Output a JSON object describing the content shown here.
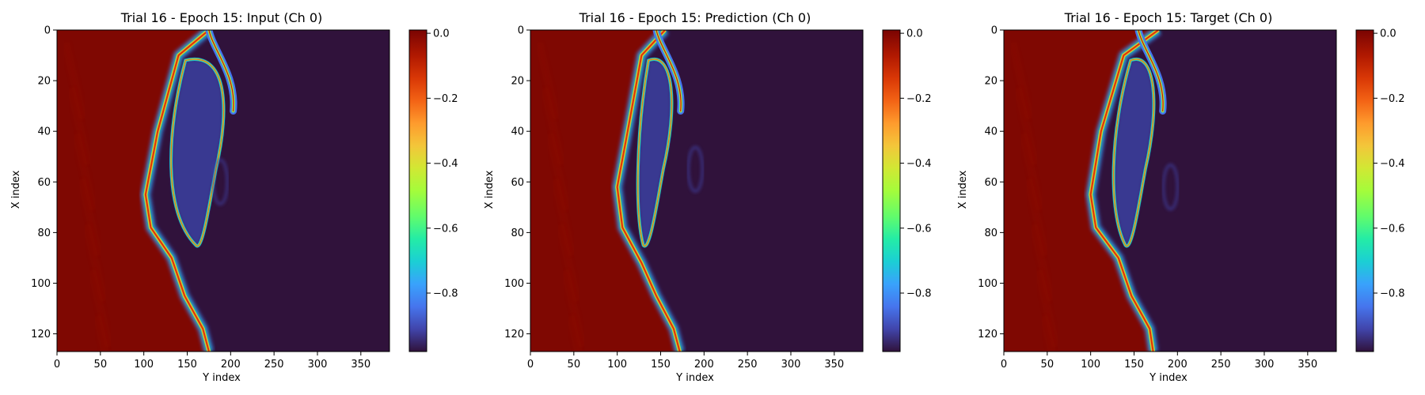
{
  "chart_data": [
    {
      "type": "heatmap",
      "title": "Trial 16 - Epoch 15: Input (Ch 0)",
      "xlabel": "Y index",
      "ylabel": "X index",
      "xlim": [
        0,
        383
      ],
      "ylim": [
        127,
        0
      ],
      "x_ticks": [
        0,
        50,
        100,
        150,
        200,
        250,
        300,
        350
      ],
      "y_ticks": [
        0,
        20,
        40,
        60,
        80,
        100,
        120
      ],
      "colormap": "turbo",
      "colorbar": {
        "range": [
          -0.98,
          0.01
        ],
        "ticks": [
          0.0,
          -0.2,
          -0.4,
          -0.6,
          -0.8
        ]
      },
      "field": {
        "front_y_at_x": [
          [
            0,
            175
          ],
          [
            10,
            140
          ],
          [
            40,
            116
          ],
          [
            65,
            102
          ],
          [
            78,
            108
          ],
          [
            90,
            132
          ],
          [
            105,
            147
          ],
          [
            118,
            168
          ],
          [
            127,
            175
          ]
        ],
        "plume_tip_y": 205,
        "eddy_center": [
          60,
          188
        ],
        "background_value": -0.98,
        "fluid_value": 0.0
      }
    },
    {
      "type": "heatmap",
      "title": "Trial 16 - Epoch 15: Prediction (Ch 0)",
      "xlabel": "Y index",
      "ylabel": "X index",
      "xlim": [
        0,
        383
      ],
      "ylim": [
        127,
        0
      ],
      "x_ticks": [
        0,
        50,
        100,
        150,
        200,
        250,
        300,
        350
      ],
      "y_ticks": [
        0,
        20,
        40,
        60,
        80,
        100,
        120
      ],
      "colormap": "turbo",
      "colorbar": {
        "range": [
          -0.98,
          0.01
        ],
        "ticks": [
          0.0,
          -0.2,
          -0.4,
          -0.6,
          -0.8
        ]
      },
      "field": {
        "front_y_at_x": [
          [
            0,
            155
          ],
          [
            10,
            128
          ],
          [
            40,
            112
          ],
          [
            62,
            100
          ],
          [
            78,
            106
          ],
          [
            92,
            128
          ],
          [
            105,
            145
          ],
          [
            118,
            165
          ],
          [
            127,
            172
          ]
        ],
        "plume_tip_y": 175,
        "eddy_center": [
          55,
          190
        ],
        "background_value": -0.98,
        "fluid_value": 0.0
      }
    },
    {
      "type": "heatmap",
      "title": "Trial 16 - Epoch 15: Target (Ch 0)",
      "xlabel": "Y index",
      "ylabel": "X index",
      "xlim": [
        0,
        383
      ],
      "ylim": [
        127,
        0
      ],
      "x_ticks": [
        0,
        50,
        100,
        150,
        200,
        250,
        300,
        350
      ],
      "y_ticks": [
        0,
        20,
        40,
        60,
        80,
        100,
        120
      ],
      "colormap": "turbo",
      "colorbar": {
        "range": [
          -0.98,
          0.01
        ],
        "ticks": [
          0.0,
          -0.2,
          -0.4,
          -0.6,
          -0.8
        ]
      },
      "field": {
        "front_y_at_x": [
          [
            0,
            178
          ],
          [
            10,
            138
          ],
          [
            40,
            112
          ],
          [
            65,
            100
          ],
          [
            78,
            106
          ],
          [
            90,
            132
          ],
          [
            105,
            147
          ],
          [
            118,
            168
          ],
          [
            127,
            172
          ]
        ],
        "plume_tip_y": 185,
        "eddy_center": [
          62,
          192
        ],
        "background_value": -0.98,
        "fluid_value": 0.0
      }
    }
  ]
}
